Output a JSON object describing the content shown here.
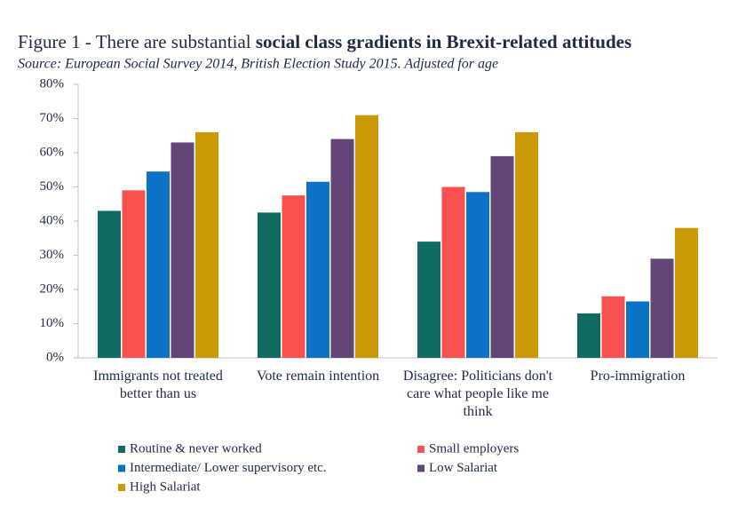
{
  "chart_data": {
    "type": "bar",
    "title": {
      "plain": "Figure 1 - There are substantial",
      "bold": "social class gradients in Brexit-related attitudes"
    },
    "subtitle": "Source:  European Social Survey 2014, British Election Study 2015.  Adjusted for age",
    "categories": [
      "Immigrants not treated better than us",
      "Vote remain intention",
      "Disagree: Politicians don't care what people like me think",
      "Pro-immigration"
    ],
    "series": [
      {
        "name": "Routine & never worked",
        "color": "#106b61",
        "values": [
          43,
          42.5,
          34,
          13
        ]
      },
      {
        "name": "Small employers",
        "color": "#f9514f",
        "values": [
          49,
          47.5,
          50,
          18
        ]
      },
      {
        "name": "Intermediate/ Lower supervisory etc.",
        "color": "#0c72c8",
        "values": [
          54.5,
          51.5,
          48.5,
          16.5
        ]
      },
      {
        "name": "Low Salariat",
        "color": "#634578",
        "values": [
          63,
          64,
          59,
          29
        ]
      },
      {
        "name": "High Salariat",
        "color": "#c99a06",
        "values": [
          66,
          71,
          66,
          38
        ]
      }
    ],
    "ylim": [
      0,
      80
    ],
    "yticks": [
      {
        "value": 0,
        "label": "0%"
      },
      {
        "value": 10,
        "label": "10%"
      },
      {
        "value": 20,
        "label": "20%"
      },
      {
        "value": 30,
        "label": "30%"
      },
      {
        "value": 40,
        "label": "40%"
      },
      {
        "value": 50,
        "label": "50%"
      },
      {
        "value": 60,
        "label": "60%"
      },
      {
        "value": 70,
        "label": "70%"
      },
      {
        "value": 80,
        "label": "80%"
      }
    ],
    "grid": false
  }
}
